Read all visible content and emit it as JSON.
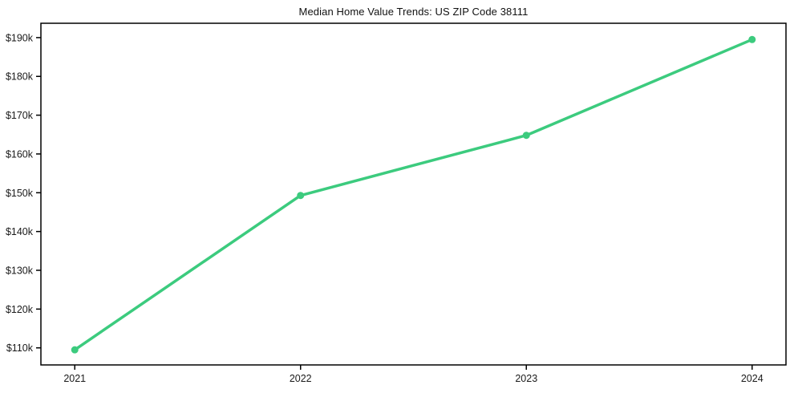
{
  "chart_data": {
    "type": "line",
    "title": "Median Home Value Trends: US ZIP Code 38111",
    "x": [
      2021,
      2022,
      2023,
      2024
    ],
    "values": [
      109.5,
      149.3,
      164.8,
      189.5
    ],
    "units": "USD thousands",
    "xlabel": "",
    "ylabel": "",
    "xticks": {
      "values": [
        2021,
        2022,
        2023,
        2024
      ],
      "labels": [
        "2021",
        "2022",
        "2023",
        "2024"
      ]
    },
    "yticks": {
      "values": [
        110,
        120,
        130,
        140,
        150,
        160,
        170,
        180,
        190
      ],
      "labels": [
        "$110k",
        "$120k",
        "$130k",
        "$140k",
        "$150k",
        "$160k",
        "$170k",
        "$180k",
        "$190k"
      ]
    },
    "xlim": [
      2020.85,
      2024.15
    ],
    "ylim": [
      105.6,
      193.7
    ],
    "grid": false,
    "legend": "none",
    "line_color": "#3ccb7e",
    "marker": "circle",
    "frame_color": "#000000",
    "text_color": "#1a1a1a",
    "background_color": "#ffffff"
  }
}
